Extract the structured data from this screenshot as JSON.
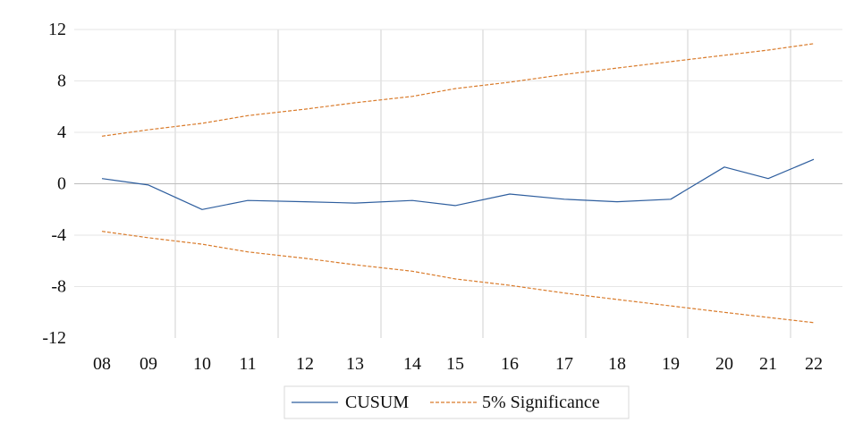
{
  "chart_data": {
    "type": "line",
    "title": "",
    "xlabel": "",
    "ylabel": "",
    "x_tick_labels": [
      "08",
      "09",
      "10",
      "11",
      "12",
      "13",
      "14",
      "15",
      "16",
      "17",
      "18",
      "19",
      "20",
      "21",
      "22"
    ],
    "y_ticks": [
      12,
      8,
      4,
      0,
      -4,
      -8,
      -12
    ],
    "ylim": [
      -12,
      12
    ],
    "grid": true,
    "legend_position": "bottom",
    "series": [
      {
        "name": "CUSUM",
        "color": "#2e5e9e",
        "style": "solid",
        "values": [
          0.4,
          -0.1,
          -2.0,
          -1.3,
          -1.4,
          -1.5,
          -1.3,
          -1.7,
          -0.8,
          -1.2,
          -1.4,
          -1.2,
          1.3,
          0.4,
          1.9
        ]
      },
      {
        "name": "5% Significance",
        "color": "#d97b2b",
        "style": "dashed",
        "values": [
          3.7,
          4.2,
          4.7,
          5.3,
          5.8,
          6.3,
          6.8,
          7.4,
          7.9,
          8.5,
          9.0,
          9.5,
          10.0,
          10.4,
          10.9
        ]
      },
      {
        "name": "",
        "color": "#d97b2b",
        "style": "dashed",
        "values": [
          -3.7,
          -4.2,
          -4.7,
          -5.3,
          -5.8,
          -6.3,
          -6.8,
          -7.4,
          -7.9,
          -8.5,
          -9.0,
          -9.5,
          -10.0,
          -10.4,
          -10.8
        ]
      }
    ],
    "legend": [
      "CUSUM",
      "5% Significance"
    ]
  }
}
